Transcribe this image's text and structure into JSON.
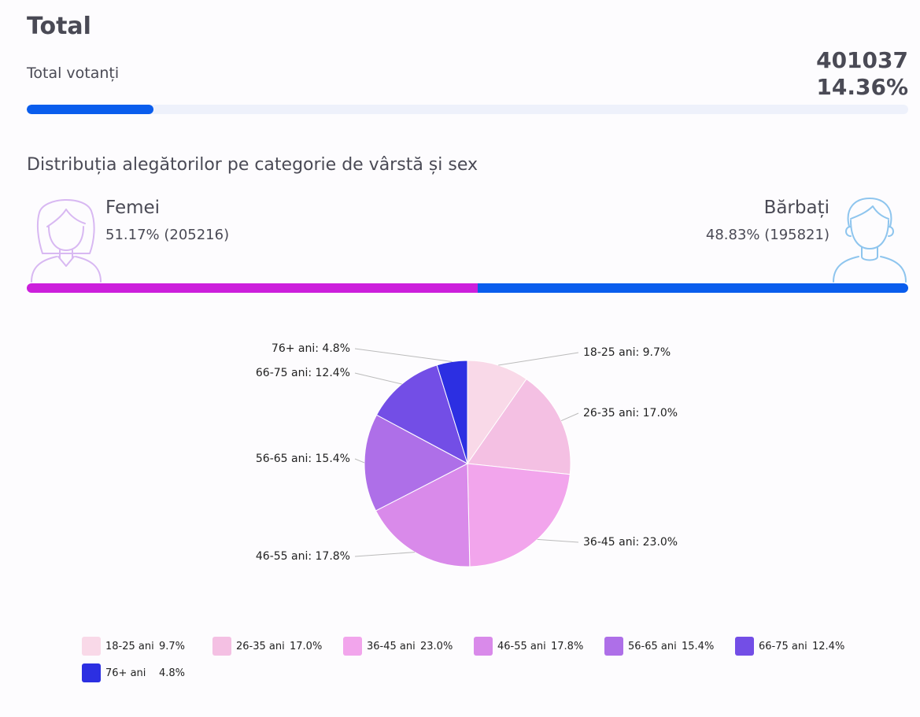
{
  "header": {
    "title": "Total"
  },
  "voters": {
    "label": "Total votanți",
    "count": "401037",
    "percent": "14.36%",
    "progress": 14.36
  },
  "distribution": {
    "title": "Distribuția alegătorilor pe categorie de vârstă și sex",
    "female": {
      "label": "Femei",
      "stats": "51.17% (205216)",
      "share": 51.17,
      "color": "#cc1fdc"
    },
    "male": {
      "label": "Bărbați",
      "stats": "48.83% (195821)",
      "share": 48.83,
      "color": "#0a5ded"
    }
  },
  "chart_data": {
    "type": "pie",
    "title": "",
    "categories": [
      "18-25 ani",
      "26-35 ani",
      "36-45 ani",
      "46-55 ani",
      "56-65 ani",
      "66-75 ani",
      "76+ ani"
    ],
    "values": [
      9.7,
      17.0,
      23.0,
      17.8,
      15.4,
      12.4,
      4.8
    ],
    "value_labels": [
      "9.7%",
      "17.0%",
      "23.0%",
      "17.8%",
      "15.4%",
      "12.4%",
      "4.8%"
    ],
    "slice_labels": [
      "18-25 ani: 9.7%",
      "26-35 ani: 17.0%",
      "36-45 ani: 23.0%",
      "46-55 ani: 17.8%",
      "56-65 ani: 15.4%",
      "66-75 ani: 12.4%",
      "76+ ani: 4.8%"
    ],
    "colors": [
      "#f9d9e8",
      "#f4c0e3",
      "#f2a5ec",
      "#d98aea",
      "#ae6fe8",
      "#734ee6",
      "#2c2fe2"
    ],
    "legend_position": "bottom"
  }
}
